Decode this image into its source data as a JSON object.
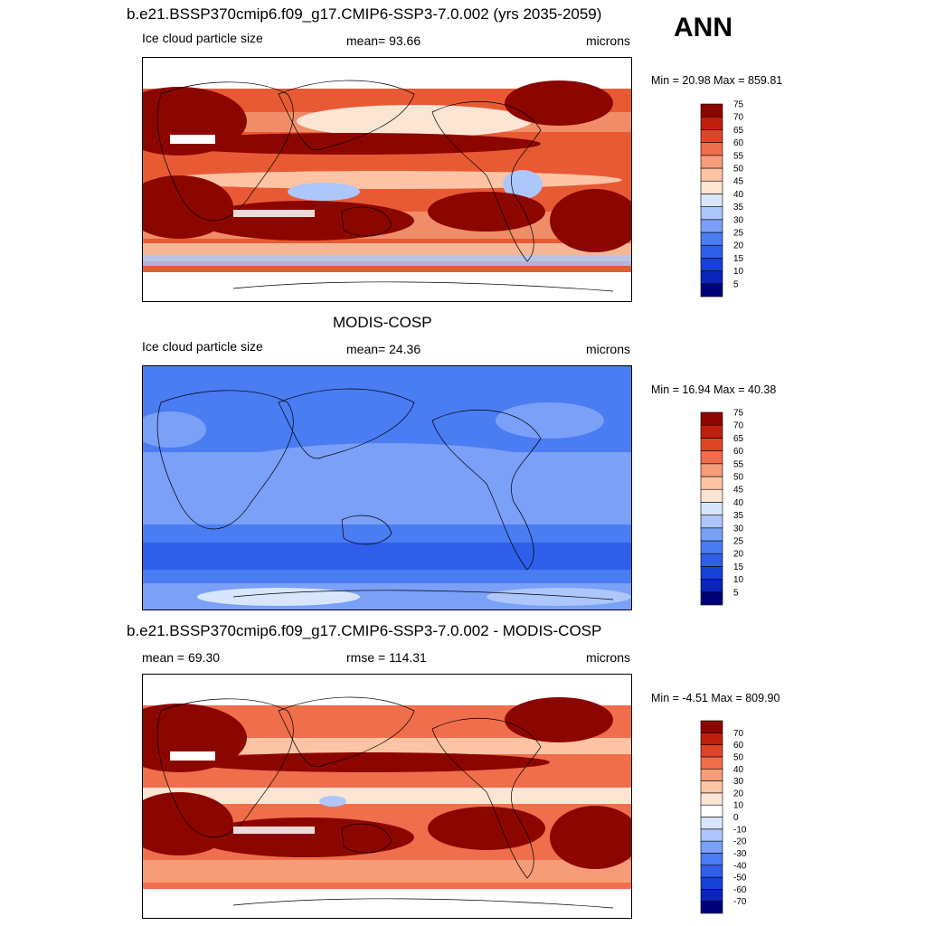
{
  "season": "ANN",
  "panels": [
    {
      "title": "b.e21.BSSP370cmip6.f09_g17.CMIP6-SSP3-7.0.002 (yrs 2035-2059)",
      "left_label": "Ice cloud particle size",
      "center_label": "mean=  93.66",
      "right_label": "microns",
      "minmax": "Min =  20.98 Max = 859.81"
    },
    {
      "title": "MODIS-COSP",
      "left_label": "Ice cloud particle size",
      "center_label": "mean=  24.36",
      "right_label": "microns",
      "minmax": "Min =  16.94 Max =  40.38"
    },
    {
      "title": "b.e21.BSSP370cmip6.f09_g17.CMIP6-SSP3-7.0.002 - MODIS-COSP",
      "left_label": "mean =  69.30",
      "center_label": "rmse = 114.31",
      "right_label": "microns",
      "minmax": "Min =  -4.51 Max = 809.90"
    }
  ],
  "chart_data": [
    {
      "type": "heatmap",
      "panel": "model",
      "map_type": "global map, cylindrical projection",
      "colorbar_levels": [
        5,
        10,
        15,
        20,
        25,
        30,
        35,
        40,
        45,
        50,
        55,
        60,
        65,
        70,
        75
      ],
      "colorbar_colors": [
        "#00007a",
        "#0a23b8",
        "#1640d6",
        "#2f5fea",
        "#4a7cf2",
        "#7aa0f7",
        "#adc6fb",
        "#d7e6fd",
        "#fde5d4",
        "#fcc4a5",
        "#f79c78",
        "#ef6e4c",
        "#e04427",
        "#c01f0e",
        "#8c0600"
      ]
    },
    {
      "type": "heatmap",
      "panel": "observations",
      "map_type": "global map, cylindrical projection",
      "colorbar_levels": [
        5,
        10,
        15,
        20,
        25,
        30,
        35,
        40,
        45,
        50,
        55,
        60,
        65,
        70,
        75
      ],
      "colorbar_colors": [
        "#00007a",
        "#0a23b8",
        "#1640d6",
        "#2f5fea",
        "#4a7cf2",
        "#7aa0f7",
        "#adc6fb",
        "#d7e6fd",
        "#fde5d4",
        "#fcc4a5",
        "#f79c78",
        "#ef6e4c",
        "#e04427",
        "#c01f0e",
        "#8c0600"
      ]
    },
    {
      "type": "heatmap",
      "panel": "difference",
      "map_type": "global map, cylindrical projection",
      "colorbar_levels": [
        -70,
        -60,
        -50,
        -40,
        -30,
        -20,
        -10,
        0,
        10,
        20,
        30,
        40,
        50,
        60,
        70
      ],
      "colorbar_colors": [
        "#00007a",
        "#0a23b8",
        "#1640d6",
        "#2f5fea",
        "#4a7cf2",
        "#7aa0f7",
        "#adc6fb",
        "#d7e6fd",
        "#ffffff",
        "#fde5d4",
        "#fcc4a5",
        "#f79c78",
        "#ef6e4c",
        "#e04427",
        "#c01f0e",
        "#8c0600"
      ]
    }
  ]
}
